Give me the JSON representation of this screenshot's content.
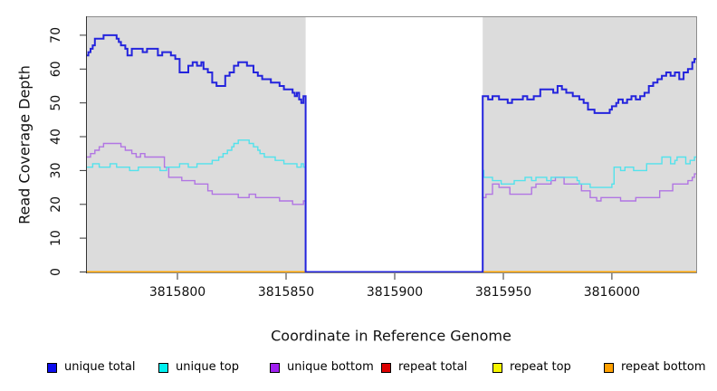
{
  "chart_data": {
    "type": "line",
    "subtype": "step",
    "title": "",
    "xlabel": "Coordinate in Reference Genome",
    "ylabel": "Read Coverage Depth",
    "xlim": [
      3815757.9,
      3816039.2
    ],
    "ylim": [
      -0.4,
      75.6
    ],
    "x_ticks": [
      3815800,
      3815850,
      3815900,
      3815950,
      3816000
    ],
    "y_ticks": [
      0,
      10,
      20,
      30,
      40,
      50,
      60,
      70
    ],
    "grid": false,
    "plot_background": "#dcdcdc",
    "outer_background": "#ffffff",
    "gap_region": {
      "start": 3815859,
      "end": 3815940.5,
      "fill": "#ffffff"
    },
    "series": [
      {
        "name": "repeat-total",
        "label": "repeat total",
        "color": "#dd0000",
        "line_width": 1.4,
        "points": [
          [
            3815758,
            0
          ],
          [
            3816039,
            0
          ]
        ]
      },
      {
        "name": "repeat-top",
        "label": "repeat top",
        "color": "#f5f500",
        "line_width": 1.4,
        "points": [
          [
            3815758,
            0
          ],
          [
            3816039,
            0
          ]
        ]
      },
      {
        "name": "repeat-bottom",
        "label": "repeat bottom",
        "color": "#ffa500",
        "line_width": 1.8,
        "points": [
          [
            3815758,
            0
          ],
          [
            3816039,
            0
          ]
        ]
      },
      {
        "name": "unique-bottom",
        "label": "unique bottom",
        "color": "#b175e3",
        "line_width": 1.4,
        "points": [
          [
            3815758,
            34
          ],
          [
            3815760,
            35
          ],
          [
            3815762,
            36
          ],
          [
            3815764,
            37
          ],
          [
            3815766,
            38
          ],
          [
            3815772,
            38
          ],
          [
            3815774,
            37
          ],
          [
            3815776,
            36
          ],
          [
            3815779,
            35
          ],
          [
            3815781,
            34
          ],
          [
            3815783,
            35
          ],
          [
            3815785,
            34
          ],
          [
            3815794,
            31
          ],
          [
            3815796,
            28
          ],
          [
            3815802,
            27
          ],
          [
            3815808,
            26
          ],
          [
            3815814,
            24
          ],
          [
            3815816,
            23
          ],
          [
            3815827,
            23
          ],
          [
            3815828,
            22
          ],
          [
            3815833,
            23
          ],
          [
            3815836,
            22
          ],
          [
            3815846,
            22
          ],
          [
            3815847,
            21
          ],
          [
            3815852,
            21
          ],
          [
            3815853,
            20
          ],
          [
            3815857,
            20
          ],
          [
            3815858,
            21
          ],
          [
            3815859,
            0
          ],
          [
            3815940.5,
            22
          ],
          [
            3815942,
            23
          ],
          [
            3815945,
            26
          ],
          [
            3815948,
            25
          ],
          [
            3815953,
            23
          ],
          [
            3815959,
            23
          ],
          [
            3815963,
            25
          ],
          [
            3815965,
            26
          ],
          [
            3815972,
            27
          ],
          [
            3815974,
            28
          ],
          [
            3815978,
            26
          ],
          [
            3815982,
            26
          ],
          [
            3815986,
            24
          ],
          [
            3815990,
            22
          ],
          [
            3815993,
            21
          ],
          [
            3815995,
            22
          ],
          [
            3816003,
            22
          ],
          [
            3816004,
            21
          ],
          [
            3816007,
            21
          ],
          [
            3816011,
            22
          ],
          [
            3816022,
            24
          ],
          [
            3816028,
            26
          ],
          [
            3816035,
            27
          ],
          [
            3816037,
            28
          ],
          [
            3816038,
            29
          ],
          [
            3816039,
            29
          ]
        ]
      },
      {
        "name": "unique-top",
        "label": "unique top",
        "color": "#53e2ec",
        "line_width": 1.4,
        "points": [
          [
            3815758,
            31
          ],
          [
            3815761,
            32
          ],
          [
            3815764,
            31
          ],
          [
            3815769,
            32
          ],
          [
            3815772,
            31
          ],
          [
            3815778,
            30
          ],
          [
            3815782,
            31
          ],
          [
            3815792,
            30
          ],
          [
            3815795,
            31
          ],
          [
            3815801,
            32
          ],
          [
            3815805,
            31
          ],
          [
            3815809,
            32
          ],
          [
            3815813,
            32
          ],
          [
            3815816,
            33
          ],
          [
            3815819,
            34
          ],
          [
            3815821,
            35
          ],
          [
            3815823,
            36
          ],
          [
            3815825,
            37
          ],
          [
            3815826,
            38
          ],
          [
            3815828,
            39
          ],
          [
            3815832,
            39
          ],
          [
            3815833,
            38
          ],
          [
            3815835,
            37
          ],
          [
            3815837,
            36
          ],
          [
            3815838,
            35
          ],
          [
            3815840,
            34
          ],
          [
            3815845,
            33
          ],
          [
            3815849,
            32
          ],
          [
            3815853,
            32
          ],
          [
            3815855,
            31
          ],
          [
            3815857,
            32
          ],
          [
            3815858,
            31
          ],
          [
            3815859,
            0
          ],
          [
            3815940.5,
            30
          ],
          [
            3815941,
            28
          ],
          [
            3815945,
            27
          ],
          [
            3815949,
            26
          ],
          [
            3815955,
            27
          ],
          [
            3815960,
            28
          ],
          [
            3815963,
            27
          ],
          [
            3815965,
            28
          ],
          [
            3815970,
            27
          ],
          [
            3815972,
            28
          ],
          [
            3815981,
            28
          ],
          [
            3815984,
            27
          ],
          [
            3815985,
            26
          ],
          [
            3815989,
            26
          ],
          [
            3815990,
            25
          ],
          [
            3816000,
            26
          ],
          [
            3816001,
            31
          ],
          [
            3816004,
            30
          ],
          [
            3816006,
            31
          ],
          [
            3816008,
            31
          ],
          [
            3816010,
            30
          ],
          [
            3816013,
            30
          ],
          [
            3816016,
            32
          ],
          [
            3816020,
            32
          ],
          [
            3816023,
            34
          ],
          [
            3816026,
            34
          ],
          [
            3816027,
            32
          ],
          [
            3816029,
            33
          ],
          [
            3816030,
            34
          ],
          [
            3816033,
            34
          ],
          [
            3816034,
            32
          ],
          [
            3816036,
            33
          ],
          [
            3816038,
            34
          ],
          [
            3816039,
            34
          ]
        ]
      },
      {
        "name": "unique-total",
        "label": "unique total",
        "color": "#2424dd",
        "line_width": 2,
        "points": [
          [
            3815758,
            64
          ],
          [
            3815759,
            65
          ],
          [
            3815760,
            66
          ],
          [
            3815761,
            67
          ],
          [
            3815762,
            69
          ],
          [
            3815765,
            69
          ],
          [
            3815766,
            70
          ],
          [
            3815771,
            70
          ],
          [
            3815772,
            69
          ],
          [
            3815773,
            68
          ],
          [
            3815774,
            67
          ],
          [
            3815776,
            66
          ],
          [
            3815777,
            64
          ],
          [
            3815779,
            66
          ],
          [
            3815782,
            66
          ],
          [
            3815784,
            65
          ],
          [
            3815786,
            66
          ],
          [
            3815788,
            66
          ],
          [
            3815791,
            64
          ],
          [
            3815793,
            65
          ],
          [
            3815795,
            65
          ],
          [
            3815797,
            64
          ],
          [
            3815799,
            63
          ],
          [
            3815801,
            59
          ],
          [
            3815804,
            59
          ],
          [
            3815805,
            61
          ],
          [
            3815807,
            62
          ],
          [
            3815809,
            61
          ],
          [
            3815811,
            62
          ],
          [
            3815812,
            60
          ],
          [
            3815814,
            59
          ],
          [
            3815816,
            56
          ],
          [
            3815818,
            55
          ],
          [
            3815820,
            55
          ],
          [
            3815822,
            58
          ],
          [
            3815824,
            59
          ],
          [
            3815826,
            61
          ],
          [
            3815828,
            62
          ],
          [
            3815830,
            62
          ],
          [
            3815832,
            61
          ],
          [
            3815834,
            61
          ],
          [
            3815835,
            59
          ],
          [
            3815837,
            58
          ],
          [
            3815839,
            57
          ],
          [
            3815841,
            57
          ],
          [
            3815843,
            56
          ],
          [
            3815845,
            56
          ],
          [
            3815847,
            55
          ],
          [
            3815849,
            54
          ],
          [
            3815851,
            54
          ],
          [
            3815853,
            53
          ],
          [
            3815854,
            52
          ],
          [
            3815855,
            53
          ],
          [
            3815856,
            51
          ],
          [
            3815857,
            50
          ],
          [
            3815858,
            52
          ],
          [
            3815859,
            0
          ],
          [
            3815940.5,
            52
          ],
          [
            3815943,
            51
          ],
          [
            3815945,
            52
          ],
          [
            3815948,
            51
          ],
          [
            3815952,
            50
          ],
          [
            3815954,
            51
          ],
          [
            3815957,
            51
          ],
          [
            3815959,
            52
          ],
          [
            3815961,
            51
          ],
          [
            3815964,
            52
          ],
          [
            3815967,
            54
          ],
          [
            3815971,
            54
          ],
          [
            3815973,
            53
          ],
          [
            3815975,
            55
          ],
          [
            3815977,
            54
          ],
          [
            3815979,
            53
          ],
          [
            3815982,
            52
          ],
          [
            3815985,
            51
          ],
          [
            3815987,
            50
          ],
          [
            3815989,
            48
          ],
          [
            3815992,
            47
          ],
          [
            3815997,
            47
          ],
          [
            3815999,
            48
          ],
          [
            3816000,
            49
          ],
          [
            3816002,
            50
          ],
          [
            3816003,
            51
          ],
          [
            3816005,
            50
          ],
          [
            3816007,
            51
          ],
          [
            3816009,
            52
          ],
          [
            3816011,
            51
          ],
          [
            3816013,
            52
          ],
          [
            3816015,
            53
          ],
          [
            3816017,
            55
          ],
          [
            3816019,
            56
          ],
          [
            3816021,
            57
          ],
          [
            3816023,
            58
          ],
          [
            3816025,
            59
          ],
          [
            3816027,
            58
          ],
          [
            3816029,
            59
          ],
          [
            3816031,
            57
          ],
          [
            3816033,
            59
          ],
          [
            3816035,
            60
          ],
          [
            3816037,
            62
          ],
          [
            3816038,
            63
          ],
          [
            3816039,
            63
          ]
        ]
      }
    ],
    "axis_color": "#333333",
    "box_color": "#8c8c8c",
    "tick_label_color": "#111111"
  },
  "legend": {
    "items": [
      {
        "label": "unique total",
        "color": "#0d0dee"
      },
      {
        "label": "unique top",
        "color": "#00f0f0"
      },
      {
        "label": "unique bottom",
        "color": "#a020f0"
      },
      {
        "label": "repeat total",
        "color": "#dd0000"
      },
      {
        "label": "repeat top",
        "color": "#f5f500"
      },
      {
        "label": "repeat bottom",
        "color": "#ffa000"
      }
    ]
  }
}
